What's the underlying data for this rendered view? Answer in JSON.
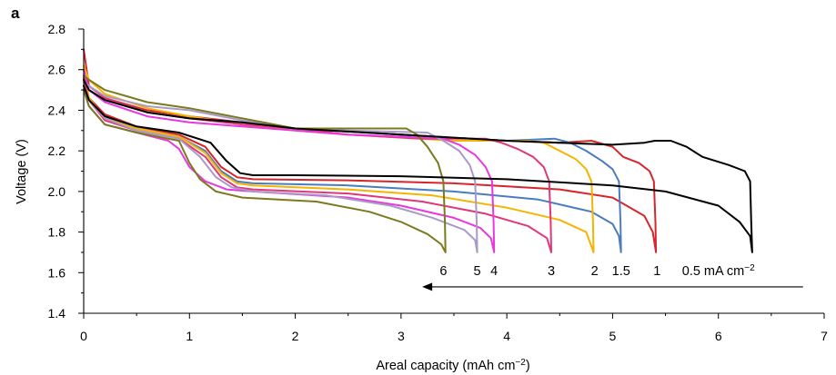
{
  "chart_data": {
    "type": "line",
    "panel_label": "a",
    "title": "",
    "xlabel": "Areal capacity (mAh cm",
    "xlabel_sup": "−2",
    "xlabel_suffix": ")",
    "ylabel": "Voltage (V)",
    "xlim": [
      0,
      7
    ],
    "ylim": [
      1.4,
      2.8
    ],
    "x_ticks": [
      0,
      1,
      2,
      3,
      4,
      5,
      6,
      7
    ],
    "x_tick_labels": [
      "0",
      "1",
      "2",
      "3",
      "4",
      "5",
      "6",
      "7"
    ],
    "y_ticks": [
      1.4,
      1.6,
      1.8,
      2.0,
      2.2,
      2.4,
      2.6,
      2.8
    ],
    "y_tick_labels": [
      "1.4",
      "1.6",
      "1.8",
      "2.0",
      "2.2",
      "2.4",
      "2.6",
      "2.8"
    ],
    "grid": false,
    "arrow": {
      "from": [
        6.8,
        1.53
      ],
      "to": [
        3.2,
        1.53
      ]
    },
    "series": [
      {
        "name": "0.5 mA cm−2",
        "label": "0.5 mA cm",
        "label_sup": "−2",
        "label_pos": [
          6.0,
          1.61
        ],
        "color": "#000000",
        "discharge": [
          [
            0,
            2.52
          ],
          [
            0.05,
            2.45
          ],
          [
            0.2,
            2.37
          ],
          [
            0.5,
            2.32
          ],
          [
            0.9,
            2.29
          ],
          [
            1.2,
            2.24
          ],
          [
            1.35,
            2.15
          ],
          [
            1.48,
            2.09
          ],
          [
            1.6,
            2.08
          ],
          [
            2.0,
            2.08
          ],
          [
            3.0,
            2.075
          ],
          [
            4.0,
            2.06
          ],
          [
            5.0,
            2.03
          ],
          [
            5.5,
            2.0
          ],
          [
            6.0,
            1.93
          ],
          [
            6.2,
            1.85
          ],
          [
            6.3,
            1.78
          ],
          [
            6.32,
            1.7
          ]
        ],
        "charge": [
          [
            6.32,
            1.7
          ],
          [
            6.31,
            1.85
          ],
          [
            6.3,
            2.05
          ],
          [
            6.25,
            2.1
          ],
          [
            6.1,
            2.13
          ],
          [
            5.85,
            2.17
          ],
          [
            5.7,
            2.22
          ],
          [
            5.55,
            2.25
          ],
          [
            5.4,
            2.25
          ],
          [
            5.3,
            2.24
          ],
          [
            5.0,
            2.23
          ],
          [
            4.0,
            2.25
          ],
          [
            3.0,
            2.28
          ],
          [
            2.0,
            2.31
          ],
          [
            1.5,
            2.34
          ],
          [
            1.0,
            2.36
          ],
          [
            0.6,
            2.39
          ],
          [
            0.2,
            2.45
          ],
          [
            0.05,
            2.5
          ],
          [
            0,
            2.55
          ]
        ]
      },
      {
        "name": "1",
        "label": "1",
        "label_pos": [
          5.42,
          1.61
        ],
        "color": "#d7262b",
        "discharge": [
          [
            0,
            2.56
          ],
          [
            0.05,
            2.46
          ],
          [
            0.2,
            2.38
          ],
          [
            0.5,
            2.32
          ],
          [
            0.9,
            2.28
          ],
          [
            1.15,
            2.22
          ],
          [
            1.3,
            2.12
          ],
          [
            1.45,
            2.07
          ],
          [
            1.6,
            2.06
          ],
          [
            2.5,
            2.055
          ],
          [
            3.5,
            2.04
          ],
          [
            4.5,
            2.01
          ],
          [
            5.0,
            1.97
          ],
          [
            5.3,
            1.88
          ],
          [
            5.38,
            1.8
          ],
          [
            5.41,
            1.7
          ]
        ],
        "charge": [
          [
            5.41,
            1.7
          ],
          [
            5.405,
            1.85
          ],
          [
            5.39,
            2.05
          ],
          [
            5.35,
            2.1
          ],
          [
            5.25,
            2.14
          ],
          [
            5.1,
            2.17
          ],
          [
            5.0,
            2.22
          ],
          [
            4.8,
            2.25
          ],
          [
            4.5,
            2.24
          ],
          [
            4.0,
            2.25
          ],
          [
            3.0,
            2.28
          ],
          [
            2.0,
            2.31
          ],
          [
            1.5,
            2.34
          ],
          [
            1.0,
            2.37
          ],
          [
            0.6,
            2.4
          ],
          [
            0.2,
            2.46
          ],
          [
            0.05,
            2.52
          ],
          [
            0,
            2.7
          ]
        ]
      },
      {
        "name": "1.5",
        "label": "1.5",
        "label_pos": [
          5.08,
          1.61
        ],
        "color": "#4a7cc0",
        "discharge": [
          [
            0,
            2.52
          ],
          [
            0.05,
            2.45
          ],
          [
            0.2,
            2.37
          ],
          [
            0.5,
            2.31
          ],
          [
            0.9,
            2.27
          ],
          [
            1.15,
            2.2
          ],
          [
            1.3,
            2.1
          ],
          [
            1.45,
            2.05
          ],
          [
            1.6,
            2.04
          ],
          [
            2.5,
            2.03
          ],
          [
            3.5,
            2.0
          ],
          [
            4.3,
            1.96
          ],
          [
            4.8,
            1.9
          ],
          [
            5.0,
            1.84
          ],
          [
            5.06,
            1.78
          ],
          [
            5.08,
            1.7
          ]
        ],
        "charge": [
          [
            5.08,
            1.7
          ],
          [
            5.075,
            1.85
          ],
          [
            5.06,
            2.05
          ],
          [
            5.0,
            2.11
          ],
          [
            4.9,
            2.15
          ],
          [
            4.75,
            2.2
          ],
          [
            4.6,
            2.24
          ],
          [
            4.45,
            2.26
          ],
          [
            4.0,
            2.25
          ],
          [
            3.0,
            2.28
          ],
          [
            2.0,
            2.31
          ],
          [
            1.5,
            2.34
          ],
          [
            1.0,
            2.36
          ],
          [
            0.6,
            2.39
          ],
          [
            0.2,
            2.45
          ],
          [
            0.05,
            2.5
          ],
          [
            0,
            2.52
          ]
        ]
      },
      {
        "name": "2",
        "label": "2",
        "label_pos": [
          4.83,
          1.61
        ],
        "color": "#f5b400",
        "discharge": [
          [
            0,
            2.6
          ],
          [
            0.05,
            2.46
          ],
          [
            0.2,
            2.36
          ],
          [
            0.5,
            2.31
          ],
          [
            0.9,
            2.27
          ],
          [
            1.15,
            2.19
          ],
          [
            1.3,
            2.09
          ],
          [
            1.45,
            2.04
          ],
          [
            1.6,
            2.03
          ],
          [
            2.5,
            2.01
          ],
          [
            3.3,
            1.98
          ],
          [
            4.0,
            1.92
          ],
          [
            4.5,
            1.86
          ],
          [
            4.75,
            1.8
          ],
          [
            4.82,
            1.7
          ]
        ],
        "charge": [
          [
            4.82,
            1.7
          ],
          [
            4.815,
            1.85
          ],
          [
            4.8,
            2.05
          ],
          [
            4.75,
            2.11
          ],
          [
            4.65,
            2.16
          ],
          [
            4.5,
            2.2
          ],
          [
            4.35,
            2.24
          ],
          [
            4.2,
            2.25
          ],
          [
            3.5,
            2.25
          ],
          [
            2.5,
            2.28
          ],
          [
            2.0,
            2.3
          ],
          [
            1.5,
            2.33
          ],
          [
            1.0,
            2.37
          ],
          [
            0.6,
            2.41
          ],
          [
            0.2,
            2.48
          ],
          [
            0.05,
            2.55
          ],
          [
            0,
            2.62
          ]
        ]
      },
      {
        "name": "3",
        "label": "3",
        "label_pos": [
          4.42,
          1.61
        ],
        "color": "#e0377a",
        "discharge": [
          [
            0,
            2.55
          ],
          [
            0.05,
            2.45
          ],
          [
            0.2,
            2.35
          ],
          [
            0.5,
            2.3
          ],
          [
            0.9,
            2.26
          ],
          [
            1.15,
            2.17
          ],
          [
            1.3,
            2.07
          ],
          [
            1.45,
            2.02
          ],
          [
            1.6,
            2.01
          ],
          [
            2.5,
            1.99
          ],
          [
            3.2,
            1.95
          ],
          [
            3.8,
            1.89
          ],
          [
            4.2,
            1.83
          ],
          [
            4.38,
            1.77
          ],
          [
            4.42,
            1.7
          ]
        ],
        "charge": [
          [
            4.42,
            1.7
          ],
          [
            4.415,
            1.85
          ],
          [
            4.4,
            2.05
          ],
          [
            4.35,
            2.12
          ],
          [
            4.25,
            2.17
          ],
          [
            4.1,
            2.21
          ],
          [
            3.95,
            2.24
          ],
          [
            3.8,
            2.26
          ],
          [
            3.2,
            2.26
          ],
          [
            2.5,
            2.28
          ],
          [
            2.0,
            2.31
          ],
          [
            1.5,
            2.33
          ],
          [
            1.0,
            2.36
          ],
          [
            0.6,
            2.39
          ],
          [
            0.2,
            2.46
          ],
          [
            0.05,
            2.52
          ],
          [
            0,
            2.56
          ]
        ]
      },
      {
        "name": "4",
        "label": "4",
        "label_pos": [
          3.88,
          1.61
        ],
        "color": "#e838e0",
        "discharge": [
          [
            0,
            2.5
          ],
          [
            0.05,
            2.42
          ],
          [
            0.2,
            2.33
          ],
          [
            0.5,
            2.29
          ],
          [
            0.8,
            2.25
          ],
          [
            0.9,
            2.21
          ],
          [
            1.0,
            2.12
          ],
          [
            1.15,
            2.05
          ],
          [
            1.35,
            2.01
          ],
          [
            1.6,
            2.0
          ],
          [
            2.5,
            1.97
          ],
          [
            3.0,
            1.93
          ],
          [
            3.5,
            1.87
          ],
          [
            3.75,
            1.82
          ],
          [
            3.85,
            1.77
          ],
          [
            3.88,
            1.7
          ]
        ],
        "charge": [
          [
            3.88,
            1.7
          ],
          [
            3.875,
            1.85
          ],
          [
            3.86,
            2.05
          ],
          [
            3.8,
            2.12
          ],
          [
            3.7,
            2.18
          ],
          [
            3.55,
            2.23
          ],
          [
            3.4,
            2.26
          ],
          [
            3.0,
            2.27
          ],
          [
            2.5,
            2.28
          ],
          [
            2.0,
            2.3
          ],
          [
            1.5,
            2.32
          ],
          [
            1.0,
            2.34
          ],
          [
            0.6,
            2.37
          ],
          [
            0.2,
            2.44
          ],
          [
            0.05,
            2.5
          ],
          [
            0,
            2.6
          ]
        ]
      },
      {
        "name": "5",
        "label": "5",
        "label_pos": [
          3.72,
          1.61
        ],
        "color": "#a99ac8",
        "discharge": [
          [
            0,
            2.52
          ],
          [
            0.05,
            2.45
          ],
          [
            0.2,
            2.36
          ],
          [
            0.5,
            2.3
          ],
          [
            0.9,
            2.26
          ],
          [
            1.1,
            2.17
          ],
          [
            1.25,
            2.07
          ],
          [
            1.4,
            2.02
          ],
          [
            1.6,
            2.0
          ],
          [
            2.3,
            1.98
          ],
          [
            2.9,
            1.93
          ],
          [
            3.3,
            1.87
          ],
          [
            3.6,
            1.81
          ],
          [
            3.7,
            1.76
          ],
          [
            3.72,
            1.7
          ]
        ],
        "charge": [
          [
            3.72,
            1.7
          ],
          [
            3.715,
            1.85
          ],
          [
            3.7,
            2.05
          ],
          [
            3.65,
            2.13
          ],
          [
            3.55,
            2.2
          ],
          [
            3.4,
            2.25
          ],
          [
            3.25,
            2.29
          ],
          [
            2.5,
            2.3
          ],
          [
            2.0,
            2.31
          ],
          [
            1.5,
            2.35
          ],
          [
            1.0,
            2.4
          ],
          [
            0.6,
            2.42
          ],
          [
            0.2,
            2.47
          ],
          [
            0.05,
            2.52
          ],
          [
            0,
            2.54
          ]
        ]
      },
      {
        "name": "6",
        "label": "6",
        "label_pos": [
          3.4,
          1.61
        ],
        "color": "#7a7a1e",
        "discharge": [
          [
            0,
            2.5
          ],
          [
            0.05,
            2.42
          ],
          [
            0.2,
            2.33
          ],
          [
            0.5,
            2.29
          ],
          [
            0.9,
            2.25
          ],
          [
            1.0,
            2.14
          ],
          [
            1.1,
            2.06
          ],
          [
            1.25,
            2.0
          ],
          [
            1.5,
            1.97
          ],
          [
            2.2,
            1.95
          ],
          [
            2.7,
            1.9
          ],
          [
            3.0,
            1.85
          ],
          [
            3.25,
            1.79
          ],
          [
            3.38,
            1.74
          ],
          [
            3.42,
            1.7
          ]
        ],
        "charge": [
          [
            3.42,
            1.7
          ],
          [
            3.415,
            1.85
          ],
          [
            3.4,
            2.05
          ],
          [
            3.35,
            2.14
          ],
          [
            3.25,
            2.22
          ],
          [
            3.15,
            2.28
          ],
          [
            3.05,
            2.31
          ],
          [
            2.5,
            2.31
          ],
          [
            2.0,
            2.31
          ],
          [
            1.5,
            2.36
          ],
          [
            1.0,
            2.41
          ],
          [
            0.6,
            2.44
          ],
          [
            0.2,
            2.5
          ],
          [
            0.05,
            2.55
          ],
          [
            0,
            2.57
          ]
        ]
      }
    ]
  }
}
